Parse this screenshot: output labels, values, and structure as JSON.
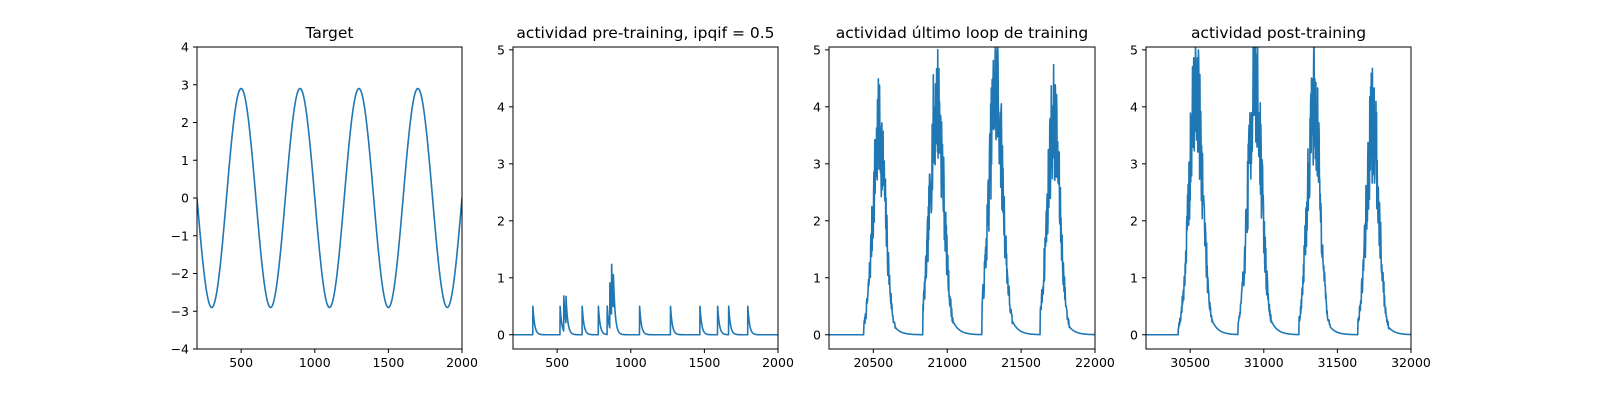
{
  "figure": {
    "background": "#ffffff",
    "line_color": "#1f77b4"
  },
  "chart_data": [
    {
      "type": "line",
      "title": "Target",
      "xlim": [
        200,
        2000
      ],
      "ylim": [
        -4,
        4
      ],
      "xticks": [
        500,
        1000,
        1500,
        2000
      ],
      "yticks": [
        -4,
        -3,
        -2,
        -1,
        0,
        1,
        2,
        3,
        4
      ],
      "ytick_labels": [
        "−4",
        "−3",
        "−2",
        "−1",
        "0",
        "1",
        "2",
        "3",
        "4"
      ],
      "signal": {
        "kind": "sine",
        "amplitude": 2.9,
        "period": 400,
        "peak_x": 500,
        "x_start": 200,
        "x_end": 2000
      }
    },
    {
      "type": "line",
      "title": "actividad pre-training, ipqif = 0.5",
      "xlim": [
        200,
        2000
      ],
      "ylim": [
        -0.25,
        5.05
      ],
      "xticks": [
        500,
        1000,
        1500,
        2000
      ],
      "yticks": [
        0,
        1,
        2,
        3,
        4,
        5
      ],
      "ytick_labels": [
        "0",
        "1",
        "2",
        "3",
        "4",
        "5"
      ],
      "signal": {
        "kind": "spikes",
        "x_start": 200,
        "x_end": 2000,
        "decay": 12,
        "events": [
          [
            335,
            0.5
          ],
          [
            520,
            0.5
          ],
          [
            545,
            0.62
          ],
          [
            560,
            0.48
          ],
          [
            670,
            0.5
          ],
          [
            780,
            0.5
          ],
          [
            840,
            0.5
          ],
          [
            858,
            0.8
          ],
          [
            870,
            0.9
          ],
          [
            882,
            0.6
          ],
          [
            1060,
            0.5
          ],
          [
            1270,
            0.5
          ],
          [
            1470,
            0.5
          ],
          [
            1590,
            0.5
          ],
          [
            1665,
            0.5
          ],
          [
            1795,
            0.5
          ]
        ]
      }
    },
    {
      "type": "line",
      "title": "actividad último loop de training",
      "xlim": [
        20200,
        22000
      ],
      "ylim": [
        -0.25,
        5.05
      ],
      "xticks": [
        20500,
        21000,
        21500,
        22000
      ],
      "yticks": [
        0,
        1,
        2,
        3,
        4,
        5
      ],
      "ytick_labels": [
        "0",
        "1",
        "2",
        "3",
        "4",
        "5"
      ],
      "signal": {
        "kind": "bumps",
        "x_start": 20200,
        "x_end": 22000,
        "noise": 0.28,
        "seed": 7,
        "bumps": [
          {
            "start": 20435,
            "center": 20540,
            "rise": 60,
            "peak": 3.55,
            "fall": 40
          },
          {
            "start": 20835,
            "center": 20930,
            "rise": 65,
            "peak": 4.1,
            "fall": 42
          },
          {
            "start": 21235,
            "center": 21330,
            "rise": 65,
            "peak": 4.35,
            "fall": 42
          },
          {
            "start": 21630,
            "center": 21720,
            "rise": 60,
            "peak": 3.75,
            "fall": 42
          }
        ]
      }
    },
    {
      "type": "line",
      "title": "actividad post-training",
      "xlim": [
        30200,
        32000
      ],
      "ylim": [
        -0.25,
        5.05
      ],
      "xticks": [
        30500,
        31000,
        31500,
        32000
      ],
      "yticks": [
        0,
        1,
        2,
        3,
        4,
        5
      ],
      "ytick_labels": [
        "0",
        "1",
        "2",
        "3",
        "4",
        "5"
      ],
      "signal": {
        "kind": "bumps",
        "x_start": 30200,
        "x_end": 32000,
        "noise": 0.28,
        "seed": 19,
        "bumps": [
          {
            "start": 30420,
            "center": 30540,
            "rise": 65,
            "peak": 4.3,
            "fall": 42
          },
          {
            "start": 30825,
            "center": 30940,
            "rise": 65,
            "peak": 4.4,
            "fall": 42
          },
          {
            "start": 31240,
            "center": 31340,
            "rise": 60,
            "peak": 4.1,
            "fall": 42
          },
          {
            "start": 31640,
            "center": 31740,
            "rise": 60,
            "peak": 3.7,
            "fall": 42
          }
        ]
      }
    }
  ]
}
